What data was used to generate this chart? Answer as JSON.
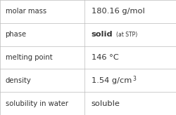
{
  "rows": [
    {
      "label": "molar mass",
      "value": "180.16 g/mol",
      "value_bold": false,
      "sup": null,
      "at_stp": false
    },
    {
      "label": "phase",
      "value": "solid",
      "value_bold": true,
      "sup": null,
      "at_stp": true
    },
    {
      "label": "melting point",
      "value": "146 °C",
      "value_bold": false,
      "sup": null,
      "at_stp": false
    },
    {
      "label": "density",
      "value": "1.54 g/cm",
      "value_bold": false,
      "sup": "3",
      "at_stp": false
    },
    {
      "label": "solubility in water",
      "value": "soluble",
      "value_bold": false,
      "sup": null,
      "at_stp": false
    }
  ],
  "bg_color": "#ffffff",
  "line_color": "#bbbbbb",
  "label_color": "#333333",
  "value_color": "#333333",
  "col_split": 0.478,
  "label_fontsize": 7.2,
  "value_fontsize": 8.2,
  "stp_fontsize": 5.5,
  "sup_fontsize": 5.5
}
